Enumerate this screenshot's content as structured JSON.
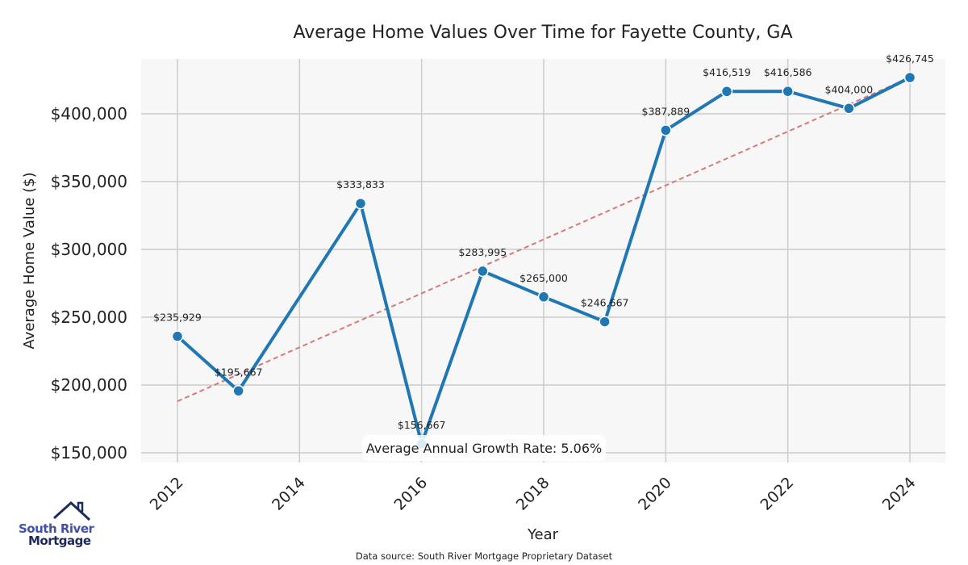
{
  "chart_data": {
    "type": "line",
    "title": "Average Home Values Over Time for Fayette County, GA",
    "xlabel": "Year",
    "ylabel": "Average Home Value ($)",
    "xlim": [
      2011.3,
      2024.6
    ],
    "ylim": [
      144000,
      448000
    ],
    "x_ticks": [
      2012,
      2014,
      2016,
      2018,
      2020,
      2022,
      2024
    ],
    "y_ticks": [
      150000,
      200000,
      250000,
      300000,
      350000,
      400000
    ],
    "y_tick_labels": [
      "$150,000",
      "$200,000",
      "$250,000",
      "$300,000",
      "$350,000",
      "$400,000"
    ],
    "grid": true,
    "series": [
      {
        "name": "Average Home Value",
        "color": "#1f77b4",
        "x": [
          2012,
          2013,
          2015,
          2016,
          2017,
          2018,
          2019,
          2020,
          2021,
          2022,
          2023,
          2024
        ],
        "y": [
          235929,
          195667,
          333833,
          156667,
          283995,
          265000,
          246667,
          387889,
          416519,
          416586,
          404000,
          426745
        ],
        "labels": [
          "$235,929",
          "$195,667",
          "$333,833",
          "$156,667",
          "$283,995",
          "$265,000",
          "$246,667",
          "$387,889",
          "$416,519",
          "$416,586",
          "$404,000",
          "$426,745"
        ]
      }
    ],
    "trendline": {
      "x": [
        2012,
        2024
      ],
      "y": [
        188000,
        426745
      ],
      "color": "#d9777a",
      "style": "dashed"
    },
    "annotation": "Average Annual Growth Rate: 5.06%"
  },
  "footer": {
    "source": "Data source: South River Mortgage Proprietary Dataset"
  },
  "logo": {
    "line1": "South River",
    "line2": "Mortgage"
  }
}
